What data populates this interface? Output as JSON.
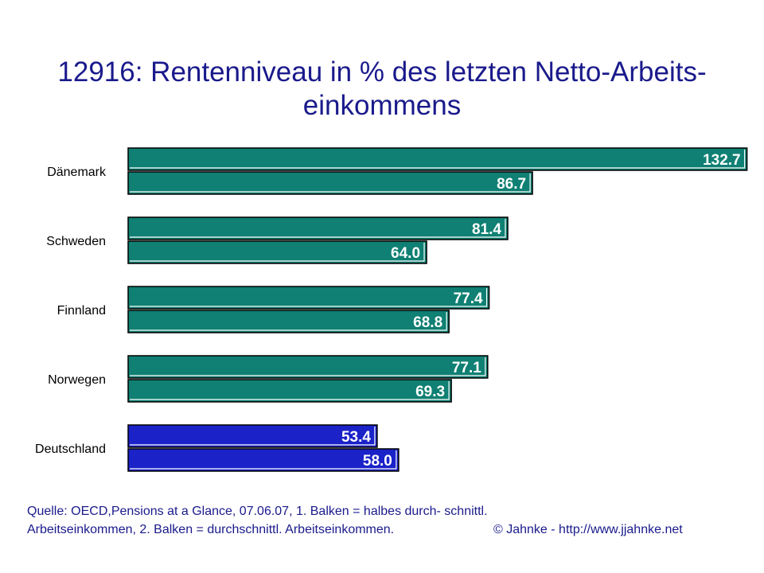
{
  "title_line1": "12916: Rentenniveau in % des letzten Netto-Arbeits-",
  "title_line2": "einkommens",
  "chart_data": {
    "type": "bar",
    "orientation": "horizontal",
    "categories": [
      "Dänemark",
      "Schweden",
      "Finnland",
      "Norwegen",
      "Deutschland"
    ],
    "series": [
      {
        "values": [
          132.7,
          81.4,
          77.4,
          77.1,
          53.4
        ]
      },
      {
        "values": [
          86.7,
          64.0,
          68.8,
          69.3,
          58.0
        ]
      }
    ],
    "value_labels": [
      [
        "132.7",
        "86.7"
      ],
      [
        "81.4",
        "64.0"
      ],
      [
        "77.4",
        "68.8"
      ],
      [
        "77.1",
        "69.3"
      ],
      [
        "53.4",
        "58.0"
      ]
    ],
    "colors": {
      "default": "#0f8073",
      "highlight": "#1a22c8",
      "highlight_category": "Deutschland",
      "outline": "#000000",
      "shadow": "#ffffff"
    },
    "grid": false,
    "legend": "none"
  },
  "source_line1": "Quelle: OECD,Pensions at a Glance, 07.06.07, 1. Balken = halbes durch- schnittl.",
  "source_line2": "Arbeitseinkommen, 2. Balken = durchschnittl. Arbeitseinkommen.",
  "copyright": "© Jahnke - http://www.jjahnke.net"
}
